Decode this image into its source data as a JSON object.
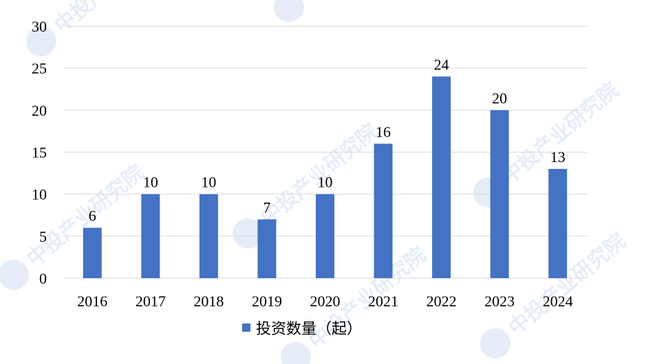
{
  "chart_data": {
    "type": "bar",
    "categories": [
      "2016",
      "2017",
      "2018",
      "2019",
      "2020",
      "2021",
      "2022",
      "2023",
      "2024"
    ],
    "series": [
      {
        "name": "投资数量（起）",
        "values": [
          6,
          10,
          10,
          7,
          10,
          16,
          24,
          20,
          13
        ],
        "color": "#4472c4"
      }
    ],
    "ylim": [
      0,
      30
    ],
    "yticks": [
      0,
      5,
      10,
      15,
      20,
      25,
      30
    ],
    "grid": true,
    "legend": "bottom-center",
    "data_labels": true
  },
  "watermark": {
    "text": "中投产业研究院"
  }
}
